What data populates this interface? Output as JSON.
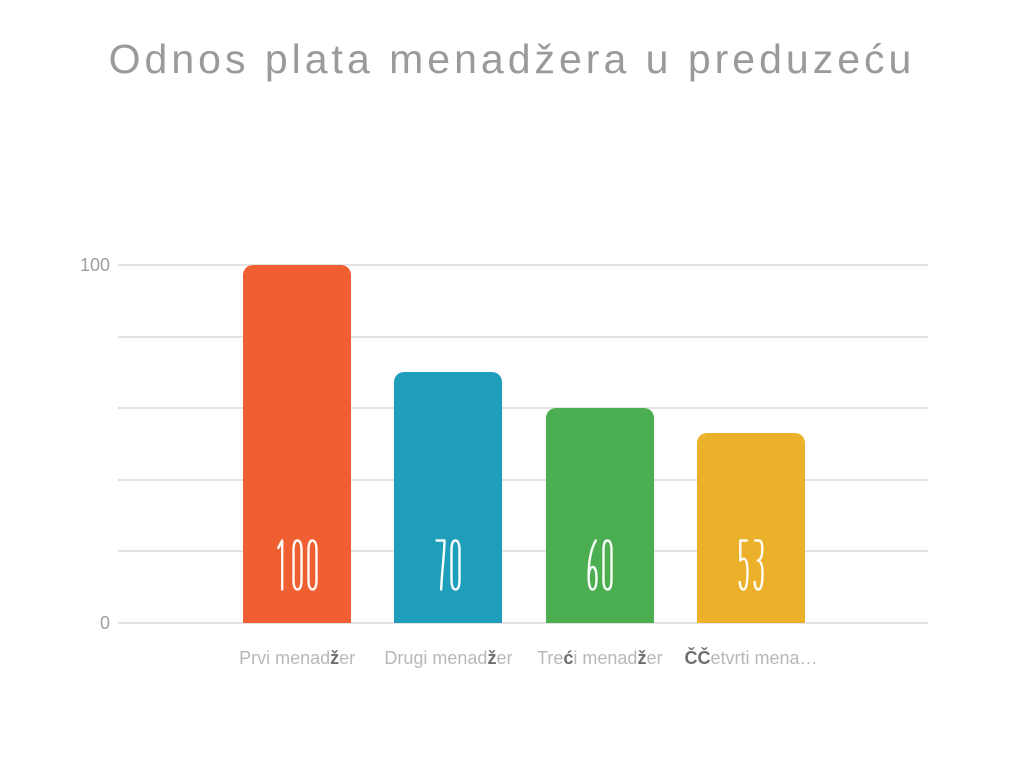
{
  "title": {
    "text": "Odnos plata menadžera u preduzeću"
  },
  "chart_data": {
    "type": "bar",
    "title": "Odnos plata menadžera u preduzeću",
    "categories": [
      "Prvi menadžer",
      "Drugi menadžer",
      "Treći menadžer",
      "ČČetvrti mena…"
    ],
    "values": [
      100,
      70,
      60,
      53
    ],
    "value_labels": [
      "100",
      "70",
      "60",
      "53"
    ],
    "bar_colors": [
      "#EF5F31",
      "#1F9EBB",
      "#4BAE50",
      "#ECB12A"
    ],
    "xlabel": "",
    "ylabel": "",
    "ylim": [
      0,
      100
    ],
    "y_ticks": [
      {
        "value": 100,
        "label": "100"
      },
      {
        "value": 0,
        "label": "0"
      }
    ],
    "gridline_values": [
      0,
      20,
      40,
      60,
      80,
      100
    ],
    "grid": "horizontal",
    "legend": "none",
    "categories_rich": [
      [
        {
          "t": "Prvi menad",
          "b": false
        },
        {
          "t": "ž",
          "b": true
        },
        {
          "t": "er",
          "b": false
        }
      ],
      [
        {
          "t": "Drugi menad",
          "b": false
        },
        {
          "t": "ž",
          "b": true
        },
        {
          "t": "er",
          "b": false
        }
      ],
      [
        {
          "t": "Tre",
          "b": false
        },
        {
          "t": "ć",
          "b": true
        },
        {
          "t": "i menad",
          "b": false
        },
        {
          "t": "ž",
          "b": true
        },
        {
          "t": "er",
          "b": false
        }
      ],
      [
        {
          "t": "ČČ",
          "b": true
        },
        {
          "t": "etvrti mena…",
          "b": false
        }
      ]
    ]
  },
  "colors": {
    "background": "#FFFFFF",
    "title": "#9A9A9A",
    "gridline": "#E3E3E3",
    "y_tick": "#9E9E9E",
    "category_label": "#B8B8B8",
    "category_label_special": "#6E6E6E",
    "value_label": "#FFFFFF"
  }
}
